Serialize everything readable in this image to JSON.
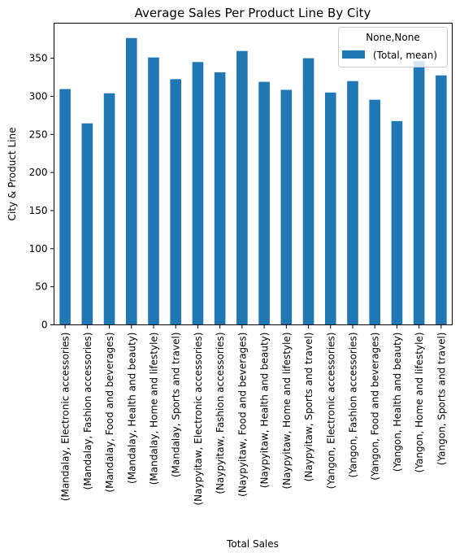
{
  "chart_data": {
    "type": "bar",
    "title": "Average Sales Per Product Line By City",
    "xlabel": "Total Sales",
    "ylabel": "City & Product Line",
    "ylim": [
      0,
      396
    ],
    "yticks": [
      0,
      50,
      100,
      150,
      200,
      250,
      300,
      350
    ],
    "grid": false,
    "legend_position": "top-right",
    "legend_title": "None,None",
    "bar_color": "#1f77b4",
    "categories": [
      "(Mandalay, Electronic accessories)",
      "(Mandalay, Fashion accessories)",
      "(Mandalay, Food and beverages)",
      "(Mandalay, Health and beauty)",
      "(Mandalay, Home and lifestyle)",
      "(Mandalay, Sports and travel)",
      "(Naypyitaw, Electronic accessories)",
      "(Naypyitaw, Fashion accessories)",
      "(Naypyitaw, Food and beverages)",
      "(Naypyitaw, Health and beauty)",
      "(Naypyitaw, Home and lifestyle)",
      "(Naypyitaw, Sports and travel)",
      "(Yangon, Electronic accessories)",
      "(Yangon, Fashion accessories)",
      "(Yangon, Food and beverages)",
      "(Yangon, Health and beauty)",
      "(Yangon, Home and lifestyle)",
      "(Yangon, Sports and travel)"
    ],
    "series": [
      {
        "name": "(Total, mean)",
        "values": [
          309.5,
          264.5,
          304,
          376.5,
          351,
          322.5,
          345,
          331.5,
          359.5,
          319,
          308.5,
          350,
          305,
          320,
          295.5,
          267.5,
          346,
          327.5
        ]
      }
    ]
  }
}
